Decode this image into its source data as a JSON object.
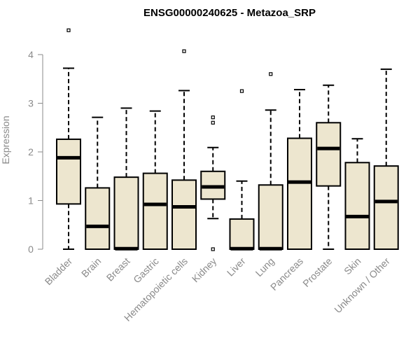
{
  "chart_data": {
    "type": "boxplot",
    "title": "ENSG00000240625 - Metazoa_SRP",
    "xlabel": "",
    "ylabel": "Expression",
    "ylim": [
      0,
      4.6
    ],
    "yticks": [
      0,
      1,
      2,
      3,
      4
    ],
    "box_fill": "#ede6cf",
    "categories": [
      "Bladder",
      "Brain",
      "Breast",
      "Gastric",
      "Hematopoietic cells",
      "Kidney",
      "Liver",
      "Lung",
      "Pancreas",
      "Prostate",
      "Skin",
      "Unknown / Other"
    ],
    "boxes": [
      {
        "name": "Bladder",
        "min": 0,
        "q1": 0.93,
        "median": 1.88,
        "q3": 2.26,
        "max": 3.72,
        "outliers": [
          4.5
        ]
      },
      {
        "name": "Brain",
        "min": 0,
        "q1": 0,
        "median": 0.47,
        "q3": 1.26,
        "max": 2.71,
        "outliers": []
      },
      {
        "name": "Breast",
        "min": 0,
        "q1": 0,
        "median": 0.01,
        "q3": 1.48,
        "max": 2.9,
        "outliers": []
      },
      {
        "name": "Gastric",
        "min": 0,
        "q1": 0,
        "median": 0.92,
        "q3": 1.56,
        "max": 2.84,
        "outliers": []
      },
      {
        "name": "Hematopoietic cells",
        "min": 0,
        "q1": 0,
        "median": 0.87,
        "q3": 1.42,
        "max": 3.26,
        "outliers": [
          4.07
        ]
      },
      {
        "name": "Kidney",
        "min": 0.63,
        "q1": 1.03,
        "median": 1.28,
        "q3": 1.6,
        "max": 2.09,
        "outliers": [
          2.71,
          2.6,
          0
        ]
      },
      {
        "name": "Liver",
        "min": 0,
        "q1": 0,
        "median": 0.01,
        "q3": 0.62,
        "max": 1.4,
        "outliers": [
          3.25
        ]
      },
      {
        "name": "Lung",
        "min": 0,
        "q1": 0,
        "median": 0.01,
        "q3": 1.32,
        "max": 2.86,
        "outliers": [
          3.6
        ]
      },
      {
        "name": "Pancreas",
        "min": 0,
        "q1": 0,
        "median": 1.38,
        "q3": 2.28,
        "max": 3.28,
        "outliers": []
      },
      {
        "name": "Prostate",
        "min": 0,
        "q1": 1.3,
        "median": 2.07,
        "q3": 2.6,
        "max": 3.37,
        "outliers": []
      },
      {
        "name": "Skin",
        "min": 0,
        "q1": 0,
        "median": 0.67,
        "q3": 1.78,
        "max": 2.27,
        "outliers": []
      },
      {
        "name": "Unknown / Other",
        "min": 0,
        "q1": 0,
        "median": 0.98,
        "q3": 1.71,
        "max": 3.7,
        "outliers": []
      }
    ]
  }
}
